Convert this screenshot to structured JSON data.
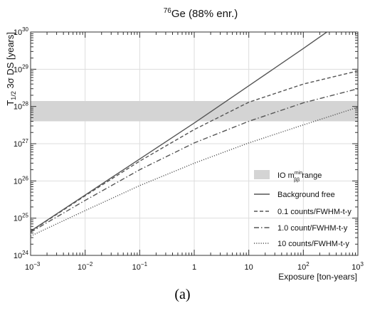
{
  "figure": {
    "caption": "(a)"
  },
  "chart_data": {
    "type": "line",
    "title": {
      "isotope_mass": "76",
      "main": "Ge (88% enr.)"
    },
    "xlabel": "Exposure [ton-years]",
    "ylabel": {
      "base": "T",
      "sub": "1/2",
      "rest": " 3σ DS [years]"
    },
    "xscale": "log",
    "yscale": "log",
    "xlim": [
      0.001,
      1000
    ],
    "ylim": [
      1e+24,
      1e+30
    ],
    "x_ticks": [
      {
        "value": 0.001,
        "base": "10",
        "exp": "−3"
      },
      {
        "value": 0.01,
        "base": "10",
        "exp": "−2"
      },
      {
        "value": 0.1,
        "base": "10",
        "exp": "−1"
      },
      {
        "value": 1,
        "base": "1",
        "exp": ""
      },
      {
        "value": 10,
        "base": "10",
        "exp": ""
      },
      {
        "value": 100,
        "base": "10",
        "exp": "2"
      },
      {
        "value": 1000,
        "base": "10",
        "exp": "3"
      }
    ],
    "y_ticks": [
      {
        "value": 1e+24,
        "base": "10",
        "exp": "24"
      },
      {
        "value": 1e+25,
        "base": "10",
        "exp": "25"
      },
      {
        "value": 1e+26,
        "base": "10",
        "exp": "26"
      },
      {
        "value": 1e+27,
        "base": "10",
        "exp": "27"
      },
      {
        "value": 1e+28,
        "base": "10",
        "exp": "28"
      },
      {
        "value": 1e+29,
        "base": "10",
        "exp": "29"
      },
      {
        "value": 1e+30,
        "base": "10",
        "exp": "30"
      }
    ],
    "band": {
      "label_prefix": "IO m",
      "label_sup": "min",
      "label_sub": "ββ",
      "label_suffix": " range",
      "y_range": [
        4e+27,
        1.4e+28
      ],
      "color": "#d4d4d4"
    },
    "series": [
      {
        "name": "Background free",
        "dash": "solid",
        "color": "#555555",
        "points": [
          [
            0.001,
            4.5e+24
          ],
          [
            1,
            3.6e+27
          ],
          [
            10,
            3.6e+28
          ],
          [
            100,
            3.6e+29
          ],
          [
            270,
            1e+30
          ]
        ]
      },
      {
        "name": "0.1 counts/FWHM-t-y",
        "dash": "dashed",
        "color": "#555555",
        "points": [
          [
            0.001,
            4.4e+24
          ],
          [
            0.01,
            4e+25
          ],
          [
            0.1,
            3.4e+26
          ],
          [
            1,
            2.4e+27
          ],
          [
            10,
            1.3e+28
          ],
          [
            100,
            4e+28
          ],
          [
            1000,
            9e+28
          ]
        ]
      },
      {
        "name": "1.0 count/FWHM-t-y",
        "dash": "dashdot",
        "color": "#555555",
        "points": [
          [
            0.001,
            4.2e+24
          ],
          [
            0.01,
            3e+25
          ],
          [
            0.1,
            2e+26
          ],
          [
            1,
            1.05e+27
          ],
          [
            10,
            4e+27
          ],
          [
            100,
            1.25e+28
          ],
          [
            1000,
            3e+28
          ]
        ]
      },
      {
        "name": "10 counts/FWHM-t-y",
        "dash": "dotted",
        "color": "#555555",
        "points": [
          [
            0.001,
            3.3e+24
          ],
          [
            0.01,
            1.6e+25
          ],
          [
            0.1,
            7.5e+25
          ],
          [
            1,
            3e+26
          ],
          [
            10,
            1.05e+27
          ],
          [
            100,
            3.2e+27
          ],
          [
            1000,
            9.5e+27
          ]
        ]
      }
    ],
    "legend_position": "bottom-right",
    "grid": true,
    "colors": {
      "grid": "#dddddd",
      "axes": "#333333"
    }
  }
}
